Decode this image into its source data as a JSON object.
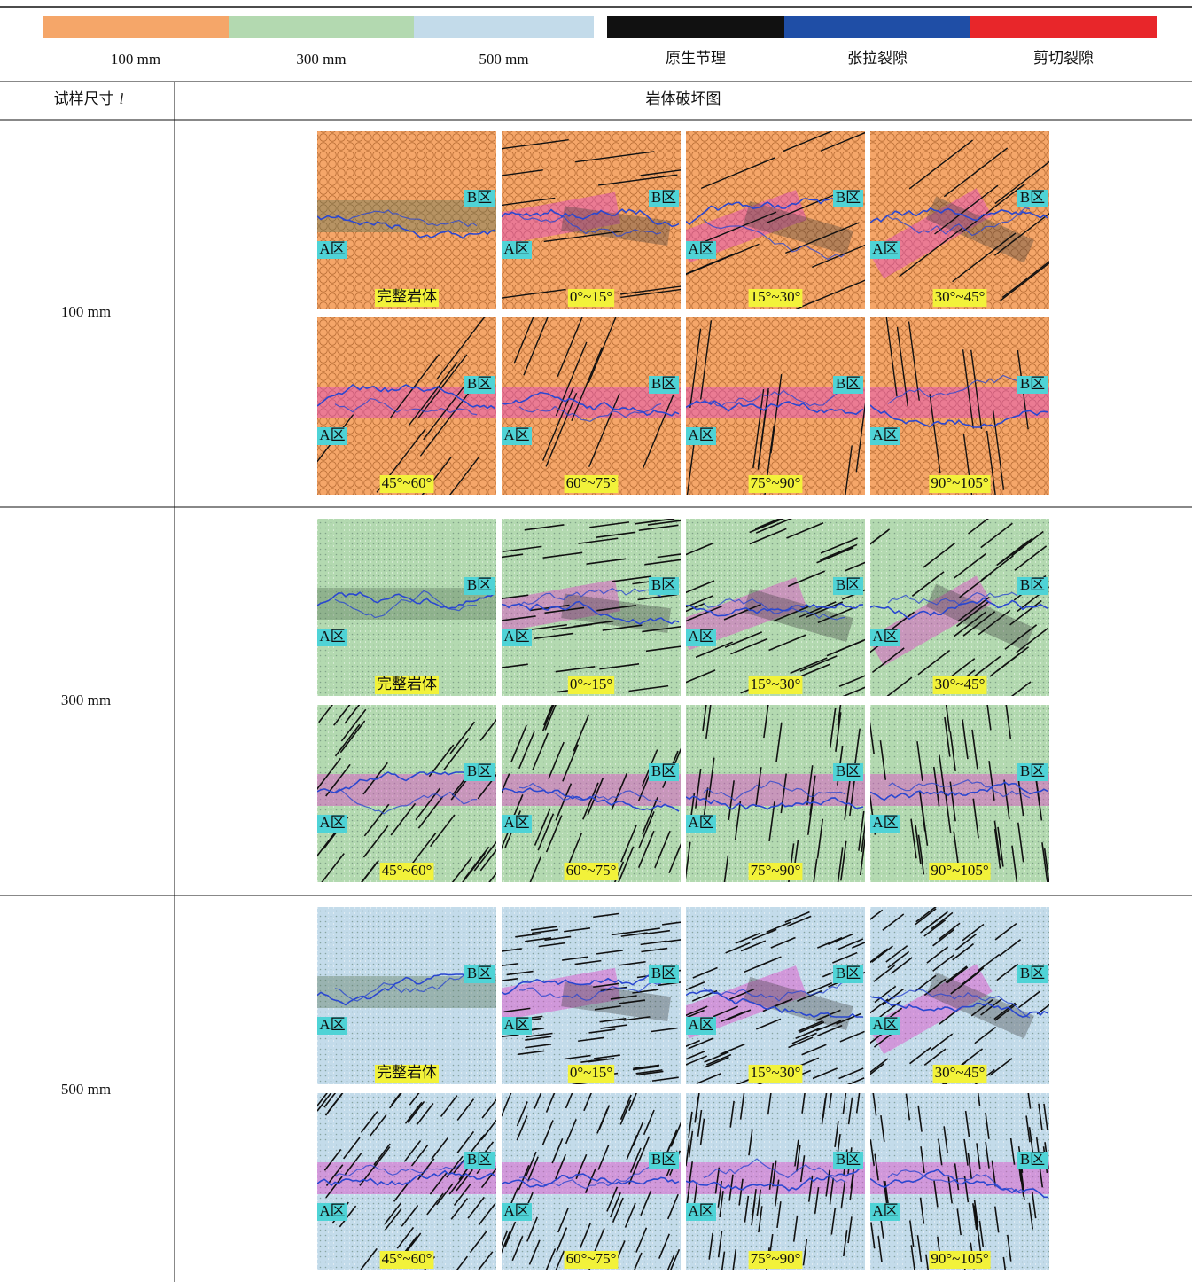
{
  "legend": {
    "sizes": [
      {
        "label": "100 mm",
        "color": "#f5a669"
      },
      {
        "label": "300 mm",
        "color": "#b3d9b0"
      },
      {
        "label": "500 mm",
        "color": "#c3dbea"
      }
    ],
    "fracture_types": [
      {
        "label": "原生节理",
        "color": "#111111"
      },
      {
        "label": "张拉裂隙",
        "color": "#1f4ea6"
      },
      {
        "label": "剪切裂隙",
        "color": "#e8262a"
      }
    ]
  },
  "table": {
    "headers": [
      {
        "text": "试样尺寸",
        "symbol": "l"
      },
      {
        "text": "岩体破坏图"
      }
    ],
    "zone_labels": [
      "A区",
      "B区"
    ],
    "rows": [
      {
        "size": "100 mm",
        "panels": [
          "完整岩体",
          "0°~15°",
          "15°~30°",
          "30°~45°",
          "45°~60°",
          "60°~75°",
          "75°~90°",
          "90°~105°"
        ]
      },
      {
        "size": "300 mm",
        "panels": [
          "完整岩体",
          "0°~15°",
          "15°~30°",
          "30°~45°",
          "45°~60°",
          "60°~75°",
          "75°~90°",
          "90°~105°"
        ]
      },
      {
        "size": "500 mm",
        "panels": [
          "完整岩体",
          "0°~15°",
          "15°~30°",
          "30°~45°",
          "45°~60°",
          "60°~75°",
          "75°~90°",
          "90°~105°"
        ]
      }
    ]
  }
}
